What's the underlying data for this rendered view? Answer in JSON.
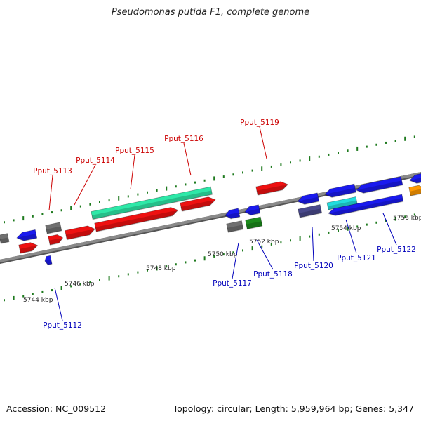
{
  "title": "Pseudomonas putida F1, complete genome",
  "footer": {
    "accession": "Accession: NC_009512",
    "summary": "Topology: circular; Length: 5,959,964 bp; Genes: 5,347"
  },
  "colors": {
    "backbone": "#8a8a8a",
    "ticks": "#1e7a1e",
    "forward_label": "#cc0000",
    "reverse_label": "#0000bb",
    "red": "#ee1111",
    "blue": "#1a1aee",
    "gray": "#707070",
    "green": "#1c8a1c",
    "teal": "#2ee8a8",
    "cyan": "#22dddd",
    "slate": "#4a4a8c",
    "orange": "#ff9900"
  },
  "scale": {
    "tick_labels": [
      "5744 kbp",
      "5746 kbp",
      "5748 kbp",
      "5750 kbp",
      "5752 kbp",
      "5754 kbp",
      "5756 kbp"
    ]
  },
  "gene_labels": {
    "forward": [
      "Pput_5113",
      "Pput_5114",
      "Pput_5115",
      "Pput_5116",
      "Pput_5119"
    ],
    "reverse": [
      "Pput_5112",
      "Pput_5117",
      "Pput_5118",
      "Pput_5120",
      "Pput_5121",
      "Pput_5122"
    ]
  }
}
